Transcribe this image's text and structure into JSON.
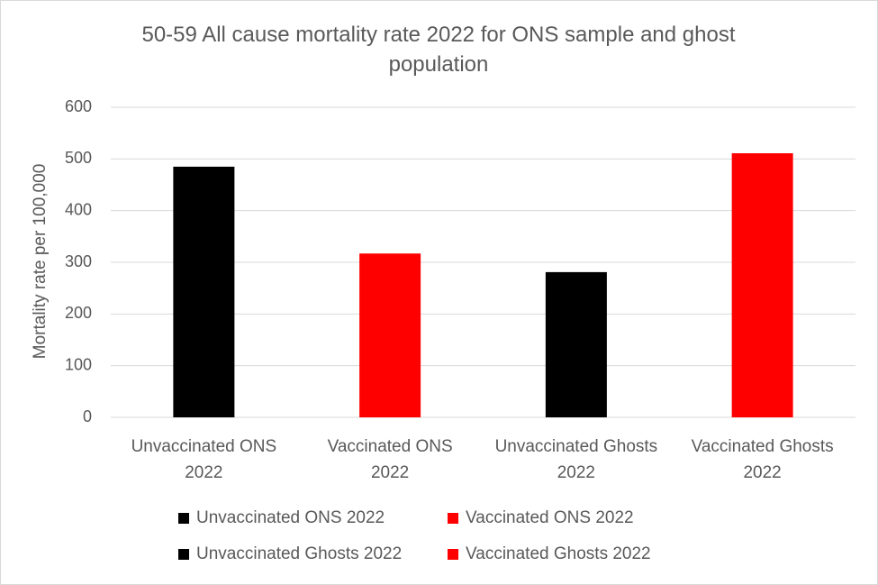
{
  "chart_data": {
    "type": "bar",
    "title": "50-59 All cause mortality rate 2022 for ONS sample and ghost population",
    "y_label": "Mortality rate per 100,000",
    "categories": [
      "Unvaccinated ONS 2022",
      "Vaccinated ONS 2022",
      "Unvaccinated Ghosts 2022",
      "Vaccinated Ghosts 2022"
    ],
    "values": [
      485,
      317,
      281,
      511
    ],
    "colors": [
      "#000000",
      "#ff0000",
      "#000000",
      "#ff0000"
    ],
    "ylim": [
      0,
      600
    ],
    "yticks": [
      0,
      100,
      200,
      300,
      400,
      500,
      600
    ],
    "grid": true,
    "legend": "bottom"
  }
}
